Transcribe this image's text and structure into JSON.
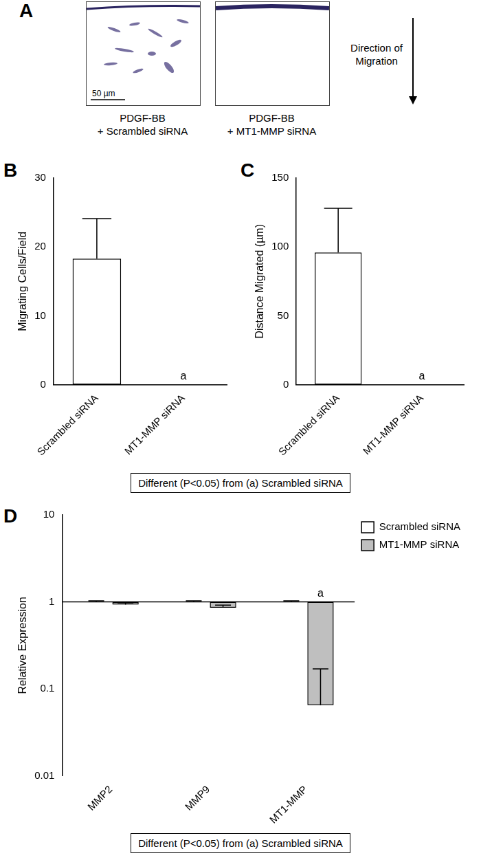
{
  "panel_a": {
    "panel": "A",
    "images": [
      {
        "caption": [
          "PDGF-BB",
          "+ Scrambled siRNA"
        ]
      },
      {
        "caption": [
          "PDGF-BB",
          "+ MT1-MMP siRNA"
        ]
      }
    ],
    "scale_bar": "50 µm",
    "arrow_label": [
      "Direction of",
      "Migration"
    ]
  },
  "chart_data": [
    {
      "type": "bar",
      "panel": "B",
      "categories": [
        "Scrambled siRNA",
        "MT1-MMP siRNA"
      ],
      "values": [
        18.3,
        0
      ],
      "errors": [
        5.8,
        0
      ],
      "annotations": [
        null,
        "a"
      ],
      "color": "#ffffff",
      "y_label": "Migrating Cells/Field",
      "ylim": [
        0,
        30
      ],
      "yticks": [
        0,
        10,
        20,
        30
      ],
      "grid": false,
      "footnote": "Different (P<0.05) from (a) Scrambled siRNA"
    },
    {
      "type": "bar",
      "panel": "C",
      "categories": [
        "Scrambled siRNA",
        "MT1-MMP siRNA"
      ],
      "values": [
        96,
        0
      ],
      "errors": [
        32,
        0
      ],
      "annotations": [
        null,
        "a"
      ],
      "color": "#ffffff",
      "y_label": "Distance Migrated (µm)",
      "ylim": [
        0,
        150
      ],
      "yticks": [
        0,
        50,
        100,
        150
      ],
      "grid": false,
      "footnote": "Different (P<0.05) from (a) Scrambled siRNA"
    },
    {
      "type": "bar",
      "panel": "D",
      "categories": [
        "MMP2",
        "MMP9",
        "MT1-MMP"
      ],
      "series": [
        {
          "name": "Scrambled siRNA",
          "color": "#ffffff",
          "values": [
            1,
            1,
            1
          ],
          "errors": [
            0.03,
            0.03,
            0.03
          ]
        },
        {
          "name": "MT1-MMP siRNA",
          "color": "#bfbfbf",
          "values": [
            0.93,
            0.86,
            0.065
          ],
          "errors": [
            0.05,
            0.06,
            0.105
          ],
          "annotations": [
            null,
            null,
            "a"
          ]
        }
      ],
      "baseline": 1,
      "y_label": "Relative Expression",
      "log": "y",
      "ylim": [
        0.01,
        10
      ],
      "yticks": [
        0.01,
        0.1,
        1,
        10
      ],
      "legend": "top-right",
      "grid": false,
      "footnote": "Different (P<0.05) from (a) Scrambled siRNA"
    }
  ]
}
